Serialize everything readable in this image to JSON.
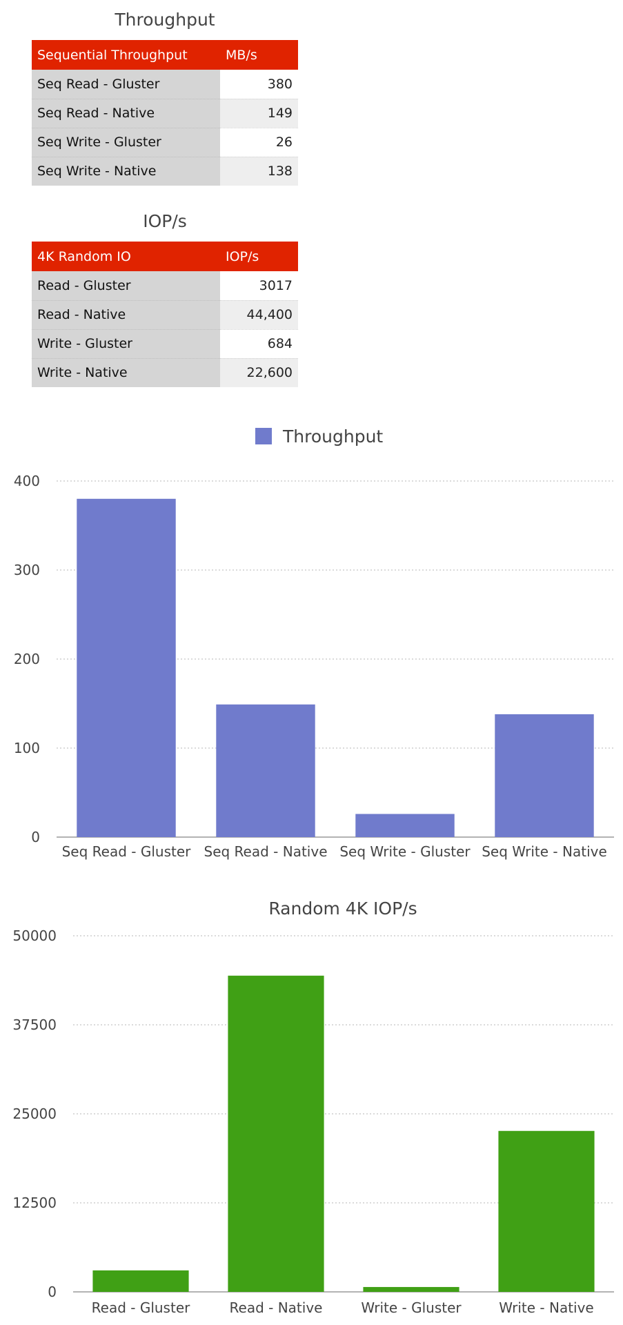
{
  "throughput_table": {
    "title": "Throughput",
    "header": [
      "Sequential Throughput",
      "MB/s"
    ],
    "rows": [
      {
        "label": "Seq Read - Gluster",
        "value": "380"
      },
      {
        "label": "Seq Read - Native",
        "value": "149"
      },
      {
        "label": "Seq Write - Gluster",
        "value": "26"
      },
      {
        "label": "Seq Write - Native",
        "value": "138"
      }
    ]
  },
  "iops_table": {
    "title": "IOP/s",
    "header": [
      "4K Random IO",
      "IOP/s"
    ],
    "rows": [
      {
        "label": "Read - Gluster",
        "value": "3017"
      },
      {
        "label": "Read - Native",
        "value": "44,400"
      },
      {
        "label": "Write - Gluster",
        "value": "684"
      },
      {
        "label": "Write - Native",
        "value": "22,600"
      }
    ]
  },
  "chart_data": [
    {
      "type": "bar",
      "title": "",
      "legend": [
        "Throughput"
      ],
      "legend_position": "top-center",
      "categories": [
        "Seq Read - Gluster",
        "Seq Read - Native",
        "Seq Write - Gluster",
        "Seq Write - Native"
      ],
      "series": [
        {
          "name": "Throughput",
          "values": [
            380,
            149,
            26,
            138
          ],
          "color": "#707bcc"
        }
      ],
      "yticks": [
        0,
        100,
        200,
        300,
        400
      ],
      "ylim": [
        0,
        400
      ],
      "grid": true
    },
    {
      "type": "bar",
      "title": "Random 4K IOP/s",
      "categories": [
        "Read - Gluster",
        "Read - Native",
        "Write - Gluster",
        "Write - Native"
      ],
      "series": [
        {
          "values": [
            3017,
            44400,
            684,
            22600
          ],
          "color": "#40a015"
        }
      ],
      "yticks": [
        0,
        12500,
        25000,
        37500,
        50000
      ],
      "ylim": [
        0,
        50000
      ],
      "grid": true
    }
  ]
}
